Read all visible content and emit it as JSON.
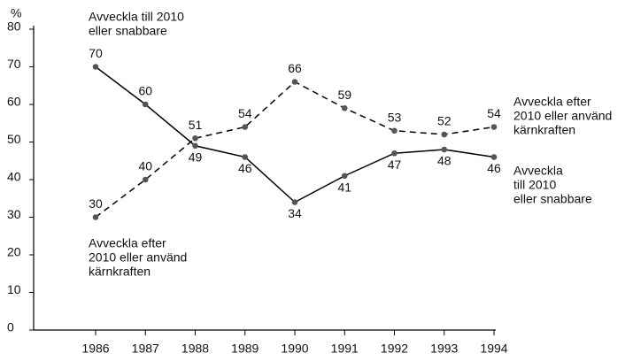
{
  "chart_data": {
    "type": "line",
    "y_label": "%",
    "categories": [
      "1986",
      "1987",
      "1988",
      "1989",
      "1990",
      "1991",
      "1992",
      "1993",
      "1994"
    ],
    "series": [
      {
        "name": [
          "Avveckla",
          "till 2010",
          "eller snabbare"
        ],
        "color": "#000000",
        "dash": false,
        "values": [
          70,
          60,
          49,
          46,
          34,
          41,
          47,
          48,
          46
        ]
      },
      {
        "name": [
          "Avveckla efter",
          "2010 eller använd",
          "kärnkraften"
        ],
        "color": "#000000",
        "dash": true,
        "values": [
          30,
          40,
          51,
          54,
          66,
          59,
          53,
          52,
          54
        ]
      }
    ],
    "annotations": [
      {
        "lines": [
          "Avveckla till 2010",
          "eller snabbare"
        ]
      },
      {
        "lines": [
          "Avveckla efter",
          "2010 eller använd",
          "kärnkraften"
        ]
      }
    ],
    "ylim": [
      0,
      80
    ],
    "yticks": [
      0,
      10,
      20,
      30,
      40,
      50,
      60,
      70,
      80
    ]
  }
}
